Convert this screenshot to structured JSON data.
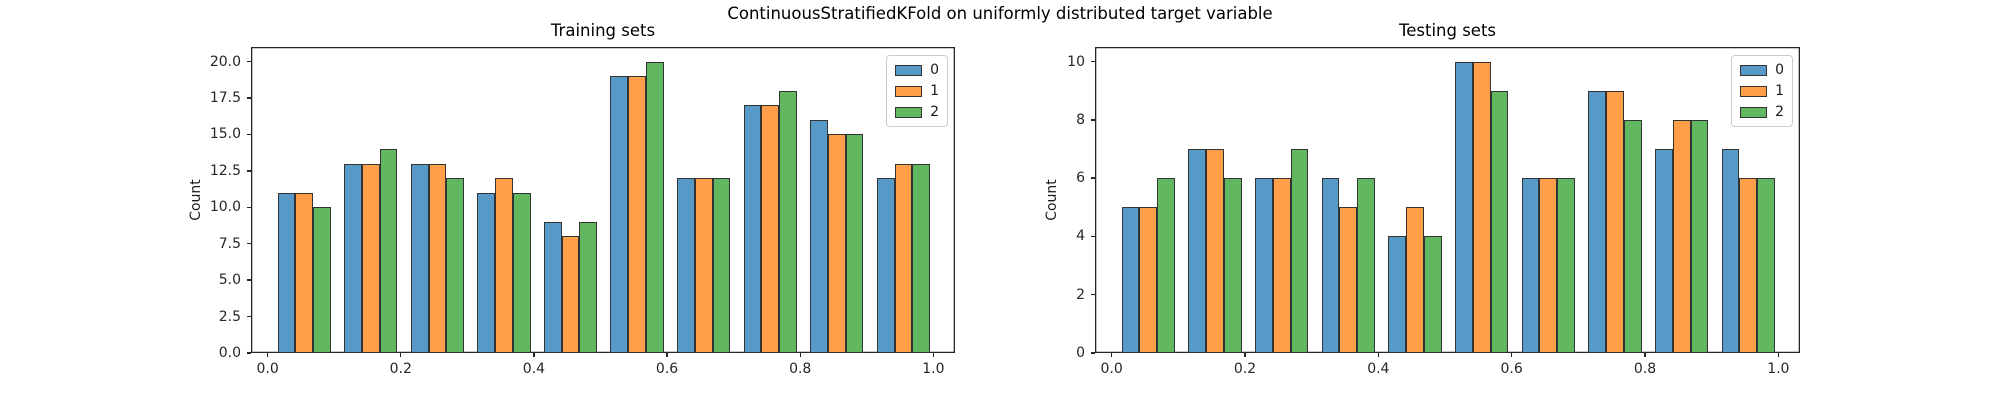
{
  "figure": {
    "suptitle": "ContinuousStratifiedKFold on uniformly distributed target variable",
    "background_color": "#ffffff"
  },
  "chart_data": [
    {
      "type": "bar",
      "title": "Training sets",
      "ylabel": "Count",
      "xlabel": "",
      "histogram_bin_edges": [
        0.0,
        0.1,
        0.2,
        0.3,
        0.4,
        0.5,
        0.6,
        0.7,
        0.8,
        0.9,
        1.0
      ],
      "series": [
        {
          "name": "0",
          "color": "#5799c7",
          "values": [
            11,
            13,
            13,
            11,
            9,
            19,
            12,
            17,
            16,
            12
          ]
        },
        {
          "name": "1",
          "color": "#ff9f4a",
          "values": [
            11,
            13,
            13,
            12,
            8,
            19,
            12,
            17,
            15,
            13
          ]
        },
        {
          "name": "2",
          "color": "#61b861",
          "values": [
            10,
            14,
            12,
            11,
            9,
            20,
            12,
            18,
            15,
            13
          ]
        }
      ],
      "bar_edge_color": "#333333",
      "xtick_values": [
        0.0,
        0.2,
        0.4,
        0.6,
        0.8,
        1.0
      ],
      "xtick_labels": [
        "0.0",
        "0.2",
        "0.4",
        "0.6",
        "0.8",
        "1.0"
      ],
      "ytick_values": [
        0,
        2.5,
        5,
        7.5,
        10,
        12.5,
        15,
        17.5,
        20
      ],
      "ytick_labels": [
        "0.0",
        "2.5",
        "5.0",
        "7.5",
        "10.0",
        "12.5",
        "15.0",
        "17.5",
        "20.0"
      ],
      "xlim": [
        -0.025,
        1.0325
      ],
      "ylim": [
        0,
        21
      ],
      "grid": false,
      "legend_position": "upper right",
      "legend_labels": [
        "0",
        "1",
        "2"
      ]
    },
    {
      "type": "bar",
      "title": "Testing sets",
      "ylabel": "Count",
      "xlabel": "",
      "histogram_bin_edges": [
        0.0,
        0.1,
        0.2,
        0.3,
        0.4,
        0.5,
        0.6,
        0.7,
        0.8,
        0.9,
        1.0
      ],
      "series": [
        {
          "name": "0",
          "color": "#5799c7",
          "values": [
            5,
            7,
            6,
            6,
            4,
            10,
            6,
            9,
            7,
            7
          ]
        },
        {
          "name": "1",
          "color": "#ff9f4a",
          "values": [
            5,
            7,
            6,
            5,
            5,
            10,
            6,
            9,
            8,
            6
          ]
        },
        {
          "name": "2",
          "color": "#61b861",
          "values": [
            6,
            6,
            7,
            6,
            4,
            9,
            6,
            8,
            8,
            6
          ]
        }
      ],
      "bar_edge_color": "#333333",
      "xtick_values": [
        0.0,
        0.2,
        0.4,
        0.6,
        0.8,
        1.0
      ],
      "xtick_labels": [
        "0.0",
        "0.2",
        "0.4",
        "0.6",
        "0.8",
        "1.0"
      ],
      "ytick_values": [
        0,
        2,
        4,
        6,
        8,
        10
      ],
      "ytick_labels": [
        "0",
        "2",
        "4",
        "6",
        "8",
        "10"
      ],
      "xlim": [
        -0.025,
        1.0325
      ],
      "ylim": [
        0,
        10.5
      ],
      "grid": false,
      "legend_position": "upper right",
      "legend_labels": [
        "0",
        "1",
        "2"
      ]
    }
  ]
}
